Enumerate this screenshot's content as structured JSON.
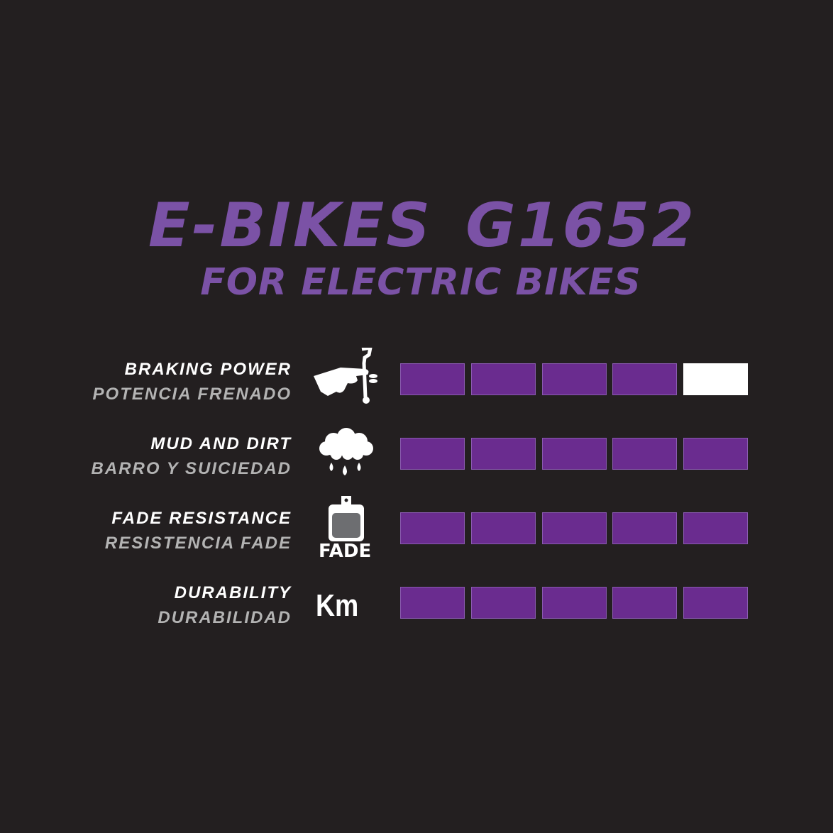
{
  "title": "E-BIKES G1652",
  "subtitle": "FOR ELECTRIC BIKES",
  "colors": {
    "background": "#231f20",
    "title": "#7b52a6",
    "bar_filled": "#6a2c8f",
    "bar_empty": "#ffffff"
  },
  "max_rating": 5,
  "ratings": [
    {
      "label_en": "BRAKING POWER",
      "label_es": "POTENCIA FRENADO",
      "icon": "hand-brake-lever-icon",
      "rating": 4
    },
    {
      "label_en": "MUD AND DIRT",
      "label_es": "BARRO Y SUICIEDAD",
      "icon": "rain-cloud-icon",
      "rating": 5
    },
    {
      "label_en": "FADE RESISTANCE",
      "label_es": "RESISTENCIA FADE",
      "icon": "brake-pad-icon",
      "icon_text": "FADE",
      "rating": 5
    },
    {
      "label_en": "DURABILITY",
      "label_es": "DURABILIDAD",
      "icon": "km-icon",
      "icon_text": "Km",
      "rating": 5
    }
  ]
}
